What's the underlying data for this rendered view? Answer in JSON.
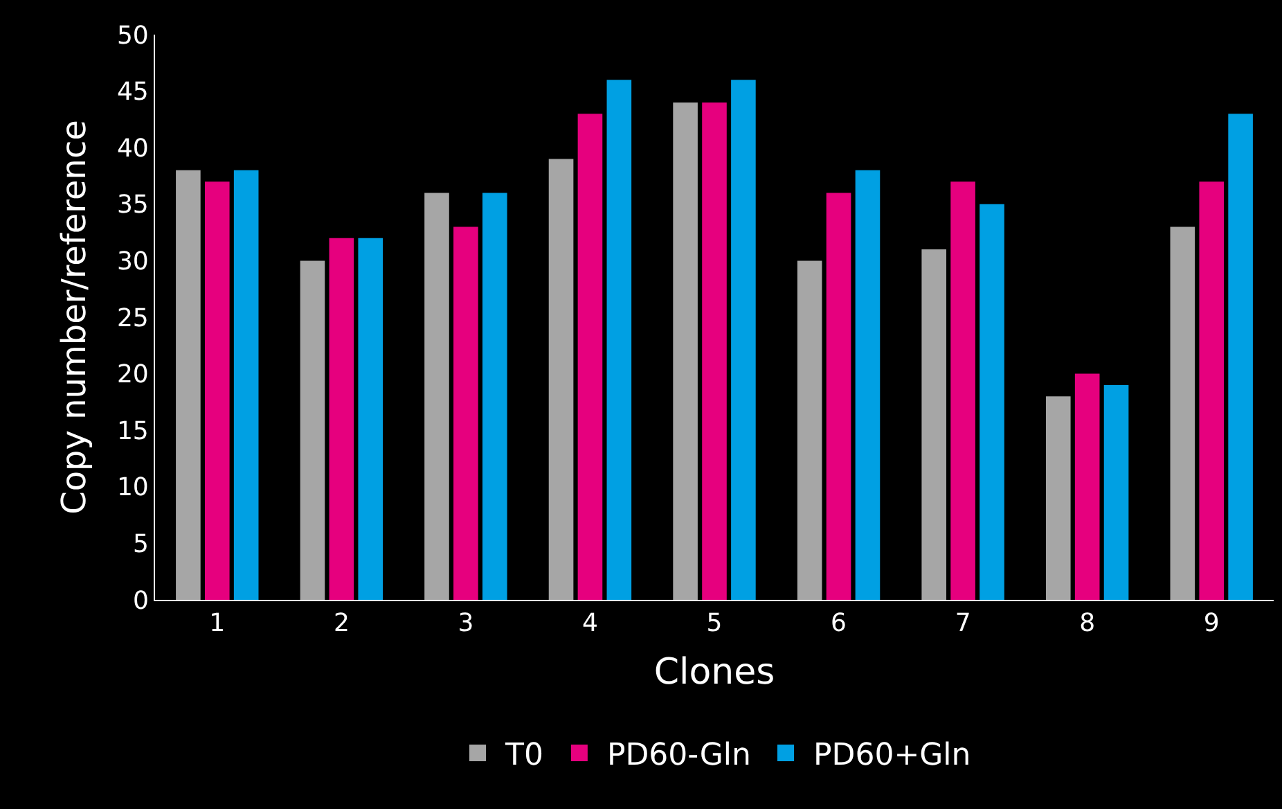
{
  "chart_data": {
    "type": "bar",
    "xlabel": "Clones",
    "ylabel": "Copy number/reference",
    "categories": [
      "1",
      "2",
      "3",
      "4",
      "5",
      "6",
      "7",
      "8",
      "9"
    ],
    "series": [
      {
        "name": "T0",
        "color": "#a6a6a6",
        "values": [
          38,
          30,
          36,
          39,
          44,
          30,
          31,
          18,
          33
        ]
      },
      {
        "name": "PD60-Gln",
        "color": "#e6007e",
        "values": [
          37,
          32,
          33,
          43,
          44,
          36,
          37,
          20,
          37
        ]
      },
      {
        "name": "PD60+Gln",
        "color": "#00a0e3",
        "values": [
          38,
          32,
          36,
          46,
          46,
          38,
          35,
          19,
          43
        ]
      }
    ],
    "ylim": [
      0,
      50
    ],
    "yticks": [
      0,
      5,
      10,
      15,
      20,
      25,
      30,
      35,
      40,
      45,
      50
    ],
    "grid": false,
    "legend": "bottom"
  }
}
